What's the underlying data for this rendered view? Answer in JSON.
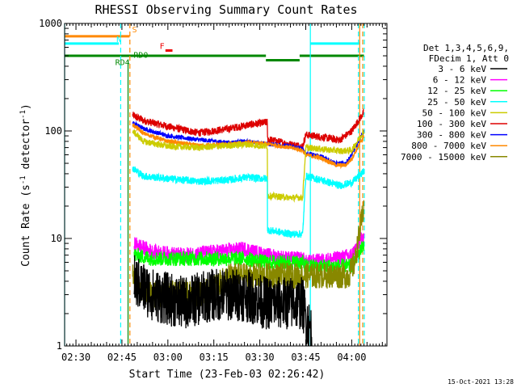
{
  "chart_data": {
    "type": "line",
    "title": "RHESSI Observing Summary Count Rates",
    "xlabel": "Start Time (23-Feb-03 02:26:42)",
    "ylabel": "Count Rate (s⁻¹ detector⁻¹)",
    "ylabel_parts": {
      "main": "Count Rate (s",
      "sup1": "-1",
      "mid": " detector",
      "sup2": "-1",
      "end": ")"
    },
    "y_scale": "log",
    "ylim": [
      1,
      1000
    ],
    "xlim_minutes": [
      -3.7,
      101.5
    ],
    "x_ticks": [
      {
        "t": 0,
        "label": "02:30"
      },
      {
        "t": 15,
        "label": "02:45"
      },
      {
        "t": 30,
        "label": "03:00"
      },
      {
        "t": 45,
        "label": "03:15"
      },
      {
        "t": 60,
        "label": "03:30"
      },
      {
        "t": 75,
        "label": "03:45"
      },
      {
        "t": 90,
        "label": "04:00"
      }
    ],
    "y_ticks": [
      {
        "v": 1,
        "label": "1"
      },
      {
        "v": 10,
        "label": "10"
      },
      {
        "v": 100,
        "label": "100"
      },
      {
        "v": 1000,
        "label": "1000"
      }
    ],
    "legend": {
      "placement": "right",
      "header": [
        "Det 1,3,4,5,6,9,",
        "FDecim 1, Att 0"
      ],
      "entries": [
        {
          "label": "3 - 6 keV",
          "color": "#000000"
        },
        {
          "label": "6 - 12 keV",
          "color": "#ff00ff"
        },
        {
          "label": "12 - 25 keV",
          "color": "#00ff00"
        },
        {
          "label": "25 - 50 keV",
          "color": "#00ffff"
        },
        {
          "label": "50 - 100 keV",
          "color": "#cccc00"
        },
        {
          "label": "100 - 300 keV",
          "color": "#dd0000"
        },
        {
          "label": "300 - 800 keV",
          "color": "#0000ff"
        },
        {
          "label": "800 - 7000 keV",
          "color": "#ff8800"
        },
        {
          "label": "7000 - 15000 keV",
          "color": "#888800"
        }
      ]
    },
    "series": [
      {
        "name": "100 - 300 keV",
        "color": "#dd0000",
        "noise": 0.035,
        "points": [
          [
            18.5,
            140
          ],
          [
            22,
            125
          ],
          [
            30,
            110
          ],
          [
            40,
            96
          ],
          [
            50,
            105
          ],
          [
            57,
            115
          ],
          [
            62,
            120
          ],
          [
            62.5,
            84
          ],
          [
            70,
            75
          ],
          [
            74,
            72
          ],
          [
            75,
            92
          ],
          [
            80,
            88
          ],
          [
            86,
            82
          ],
          [
            90,
            100
          ],
          [
            94,
            150
          ]
        ]
      },
      {
        "name": "300 - 800 keV",
        "color": "#0000ff",
        "noise": 0.02,
        "points": [
          [
            18.5,
            120
          ],
          [
            22,
            105
          ],
          [
            30,
            90
          ],
          [
            40,
            83
          ],
          [
            50,
            78
          ],
          [
            55,
            80
          ],
          [
            62,
            76
          ],
          [
            70,
            72
          ],
          [
            74,
            68
          ],
          [
            75,
            62
          ],
          [
            80,
            58
          ],
          [
            85,
            50
          ],
          [
            88,
            50
          ],
          [
            90,
            60
          ],
          [
            94,
            100
          ]
        ]
      },
      {
        "name": "800 - 7000 keV",
        "color": "#ff8800",
        "noise": 0.02,
        "points": [
          [
            18.5,
            115
          ],
          [
            22,
            95
          ],
          [
            30,
            80
          ],
          [
            40,
            73
          ],
          [
            50,
            75
          ],
          [
            55,
            78
          ],
          [
            62,
            76
          ],
          [
            70,
            70
          ],
          [
            74,
            66
          ],
          [
            75,
            60
          ],
          [
            80,
            56
          ],
          [
            85,
            48
          ],
          [
            88,
            48
          ],
          [
            90,
            55
          ],
          [
            94,
            90
          ]
        ]
      },
      {
        "name": "50 - 100 keV",
        "color": "#cccc00",
        "noise": 0.03,
        "points": [
          [
            18.5,
            100
          ],
          [
            22,
            80
          ],
          [
            30,
            72
          ],
          [
            40,
            70
          ],
          [
            50,
            73
          ],
          [
            55,
            75
          ],
          [
            62,
            72
          ],
          [
            62.5,
            25
          ],
          [
            70,
            24
          ],
          [
            74,
            24
          ],
          [
            75,
            70
          ],
          [
            80,
            68
          ],
          [
            86,
            65
          ],
          [
            90,
            66
          ],
          [
            94,
            100
          ]
        ]
      },
      {
        "name": "25 - 50 keV",
        "color": "#00ffff",
        "noise": 0.035,
        "points": [
          [
            18.5,
            45
          ],
          [
            22,
            38
          ],
          [
            30,
            36
          ],
          [
            40,
            34
          ],
          [
            50,
            35
          ],
          [
            55,
            37
          ],
          [
            62,
            36
          ],
          [
            62.5,
            12
          ],
          [
            70,
            11
          ],
          [
            74,
            11
          ],
          [
            75,
            38
          ],
          [
            80,
            35
          ],
          [
            86,
            31
          ],
          [
            90,
            33
          ],
          [
            94,
            42
          ]
        ]
      },
      {
        "name": "6 - 12 keV",
        "color": "#ff00ff",
        "noise": 0.07,
        "points": [
          [
            19,
            9
          ],
          [
            25,
            7.5
          ],
          [
            35,
            7
          ],
          [
            45,
            7.5
          ],
          [
            55,
            8
          ],
          [
            62,
            7
          ],
          [
            70,
            6.5
          ],
          [
            74,
            6.5
          ],
          [
            75,
            6
          ],
          [
            85,
            6.5
          ],
          [
            90,
            7
          ],
          [
            94,
            11
          ]
        ]
      },
      {
        "name": "12 - 25 keV",
        "color": "#00ff00",
        "noise": 0.07,
        "points": [
          [
            19,
            7
          ],
          [
            25,
            6.5
          ],
          [
            35,
            6.5
          ],
          [
            45,
            6.5
          ],
          [
            55,
            6.5
          ],
          [
            62,
            6
          ],
          [
            70,
            6
          ],
          [
            74,
            6
          ],
          [
            75,
            5.5
          ],
          [
            85,
            5.5
          ],
          [
            90,
            5.5
          ],
          [
            94,
            9
          ]
        ]
      },
      {
        "name": "7000 - 15000 keV",
        "color": "#888800",
        "noise": 0.12,
        "points": [
          [
            18.5,
            4.5
          ],
          [
            22,
            3
          ],
          [
            28,
            3
          ],
          [
            35,
            3.2
          ],
          [
            40,
            3
          ],
          [
            45,
            3.5
          ],
          [
            50,
            4.5
          ],
          [
            55,
            4.5
          ],
          [
            62,
            4.5
          ],
          [
            70,
            4.5
          ],
          [
            76,
            4.5
          ],
          [
            85,
            4.5
          ],
          [
            89,
            4.5
          ],
          [
            91,
            6
          ],
          [
            94,
            20
          ]
        ]
      },
      {
        "name": "3 - 6 keV",
        "color": "#000000",
        "noise": 0.25,
        "points": [
          [
            19,
            4
          ],
          [
            25,
            3
          ],
          [
            35,
            2.5
          ],
          [
            45,
            3
          ],
          [
            55,
            3
          ],
          [
            62,
            2.5
          ],
          [
            70,
            2.5
          ],
          [
            74,
            2.5
          ],
          [
            75,
            1.8
          ],
          [
            77,
            1.3
          ]
        ]
      }
    ],
    "step_traces": [
      {
        "color": "#ff8800",
        "level": 760,
        "from": -3.7,
        "to": 17.5
      },
      {
        "color": "#00ffff",
        "level": 650,
        "from": -3.7,
        "to": 14
      },
      {
        "color": "#00ffff",
        "level": 650,
        "from": 76.5,
        "to": 92.5
      },
      {
        "color": "#008800",
        "level": 500,
        "from": -3.7,
        "to": 62
      },
      {
        "color": "#008800",
        "level": 455,
        "from": 62,
        "to": 73
      },
      {
        "color": "#008800",
        "level": 500,
        "from": 73,
        "to": 94
      }
    ],
    "vertical_lines": [
      {
        "t": -3.7,
        "color": "#00ffff",
        "style": "solid"
      },
      {
        "t": 14.6,
        "color": "#00ffff",
        "style": "dashed"
      },
      {
        "t": 17.6,
        "color": "#ff8800",
        "style": "dashed"
      },
      {
        "t": 17.0,
        "color": "#008800",
        "style": "solid",
        "ymax": 450
      },
      {
        "t": 76.5,
        "color": "#00ffff",
        "style": "solid"
      },
      {
        "t": 92.6,
        "color": "#ff8800",
        "style": "solid"
      },
      {
        "t": 92.2,
        "color": "#00ffff",
        "style": "dashed"
      },
      {
        "t": 93.6,
        "color": "#ff8800",
        "style": "dashed"
      },
      {
        "t": 94.1,
        "color": "#00ffff",
        "style": "dashed"
      }
    ],
    "annotations": [
      {
        "text": "S",
        "t": 18.3,
        "v": 830,
        "color": "#ff8800"
      },
      {
        "text": "N",
        "t": 13.2,
        "v": 670,
        "color": "#00ffff"
      },
      {
        "text": "F",
        "t": 27.3,
        "v": 580,
        "color": "#ee0000"
      },
      {
        "text": "RD0",
        "t": 18.8,
        "v": 480,
        "color": "#008800"
      },
      {
        "text": "RD4",
        "t": 12.8,
        "v": 410,
        "color": "#008800"
      }
    ],
    "flare_marker": {
      "color": "#ee0000",
      "from": 29.2,
      "to": 31.5,
      "v": 560
    }
  },
  "footer": {
    "date": "15-Oct-2021 13:28"
  }
}
